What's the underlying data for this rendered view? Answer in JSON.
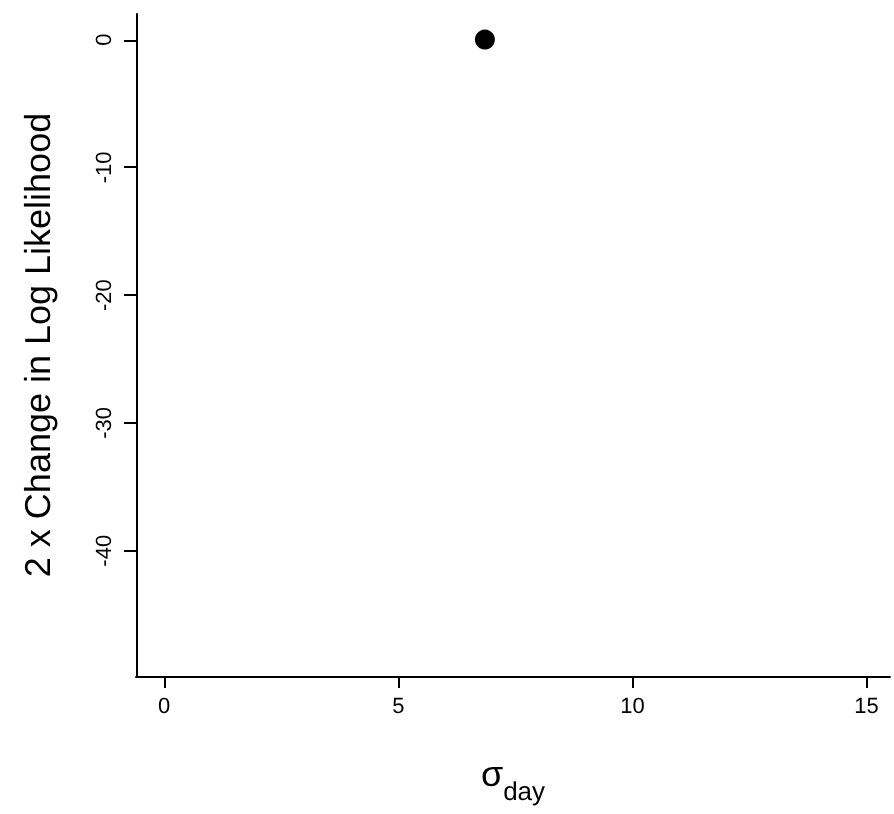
{
  "chart_data": {
    "type": "scatter",
    "xlabel": "σ$_{day}$",
    "ylabel": "2 x Change in Log Likelihood",
    "x": [
      6.85
    ],
    "values": [
      0
    ],
    "color": "#000000",
    "marker": "circle",
    "xlim": [
      -0.6,
      15.5
    ],
    "ylim": [
      -49.8,
      2
    ],
    "xticks": [
      0,
      5,
      10,
      15
    ],
    "yticks": [
      0,
      -10,
      -20,
      -30,
      -40
    ]
  }
}
